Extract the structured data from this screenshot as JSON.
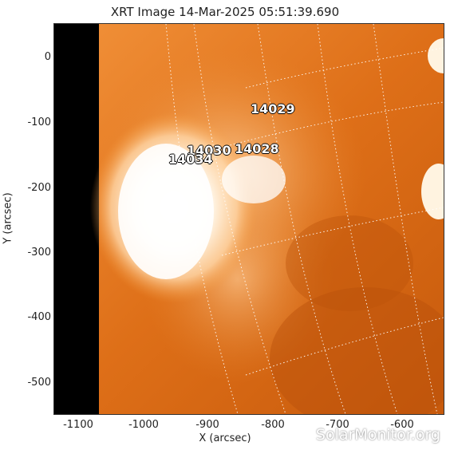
{
  "title": "XRT Image 14-Mar-2025 05:51:39.690",
  "axes": {
    "xlabel": "X (arcsec)",
    "ylabel": "Y (arcsec)",
    "x_ticks": [
      "-1100",
      "-1000",
      "-900",
      "-800",
      "-700",
      "-600"
    ],
    "y_ticks": [
      "0",
      "-100",
      "-200",
      "-300",
      "-400",
      "-500"
    ]
  },
  "active_regions": [
    {
      "id": "14029"
    },
    {
      "id": "14030"
    },
    {
      "id": "14028"
    },
    {
      "id": "14034"
    }
  ],
  "watermark": "SolarMonitor.org",
  "colors": {
    "sun_base": "#e2771a",
    "sun_bright": "#ffffff",
    "offdisk_black": "#000000",
    "grid_line": "#ffffff"
  }
}
